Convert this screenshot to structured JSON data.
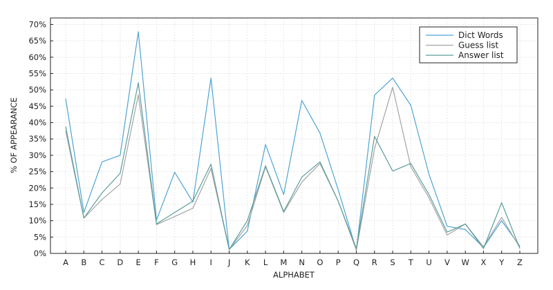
{
  "chart_data": {
    "type": "line",
    "title": "",
    "xlabel": "ALPHABET",
    "ylabel": "% OF APPEARANCE",
    "categories": [
      "A",
      "B",
      "C",
      "D",
      "E",
      "F",
      "G",
      "H",
      "I",
      "J",
      "K",
      "L",
      "M",
      "N",
      "O",
      "P",
      "Q",
      "R",
      "S",
      "T",
      "U",
      "V",
      "W",
      "X",
      "Y",
      "Z"
    ],
    "ylim": [
      0,
      72
    ],
    "yticks": [
      0,
      5,
      10,
      15,
      20,
      25,
      30,
      35,
      40,
      45,
      50,
      55,
      60,
      65,
      70
    ],
    "ytick_labels": [
      "0%",
      "5%",
      "10%",
      "15%",
      "20%",
      "25%",
      "30%",
      "35%",
      "40%",
      "45%",
      "50%",
      "55%",
      "60%",
      "65%",
      "70%"
    ],
    "grid": true,
    "legend_position": "top-right",
    "series": [
      {
        "name": "Dict Words",
        "color": "#4da3d4",
        "values": [
          47.3,
          12.5,
          28.0,
          30.0,
          67.8,
          10.2,
          24.8,
          15.7,
          53.6,
          1.2,
          6.8,
          33.3,
          18.0,
          46.8,
          36.8,
          19.5,
          1.0,
          48.4,
          53.6,
          45.3,
          24.2,
          8.3,
          7.3,
          1.8,
          10.0,
          2.2
        ]
      },
      {
        "name": "Guess list",
        "color": "#a3a3a3",
        "values": [
          37.5,
          10.8,
          16.5,
          21.2,
          48.5,
          8.8,
          11.3,
          13.8,
          26.0,
          1.2,
          8.5,
          26.5,
          12.5,
          21.8,
          27.5,
          16.0,
          1.0,
          32.0,
          50.8,
          26.5,
          17.0,
          5.6,
          9.0,
          2.0,
          11.0,
          1.8
        ]
      },
      {
        "name": "Answer list",
        "color": "#5a9e9a",
        "values": [
          38.8,
          10.8,
          18.5,
          24.5,
          52.2,
          9.0,
          12.5,
          16.0,
          27.3,
          1.2,
          10.0,
          26.8,
          12.8,
          23.3,
          28.0,
          16.0,
          1.5,
          35.8,
          25.2,
          27.5,
          18.0,
          6.5,
          9.0,
          1.5,
          15.5,
          1.5
        ]
      }
    ]
  }
}
